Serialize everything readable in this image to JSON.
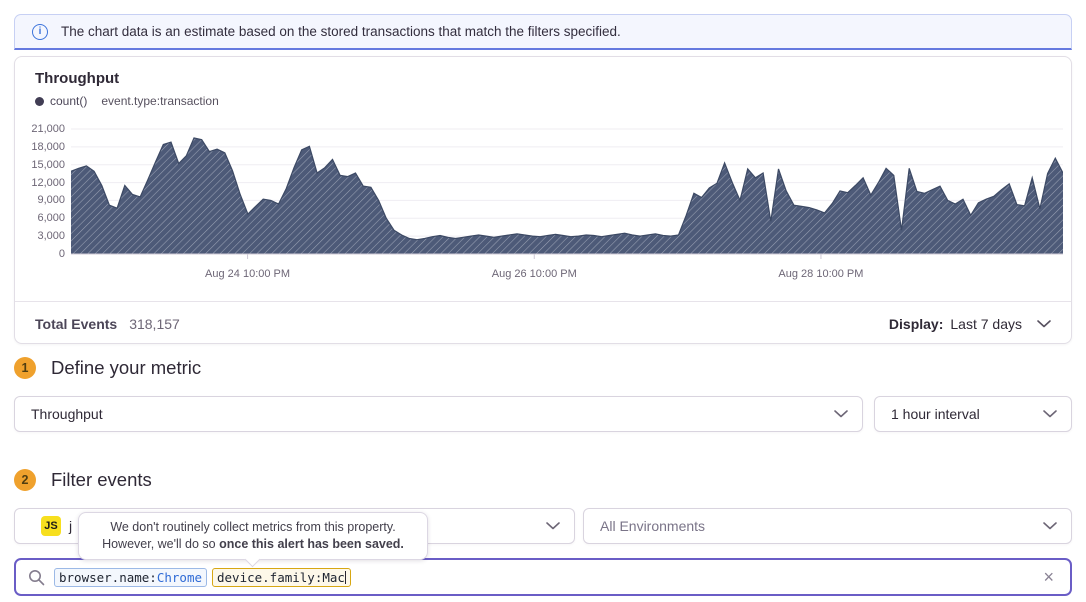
{
  "banner": {
    "text": "The chart data is an estimate based on the stored transactions that match the filters specified."
  },
  "chart": {
    "title": "Throughput",
    "legend_series": "count()",
    "legend_filter": "event.type:transaction",
    "footer": {
      "total_label": "Total Events",
      "total_value": "318,157",
      "display_label": "Display:",
      "display_value": "Last 7 days"
    }
  },
  "chart_data": {
    "type": "area",
    "title": "Throughput",
    "legend": [
      "count()"
    ],
    "filter": "event.type:transaction",
    "interval": "1 hour",
    "range": "Last 7 days",
    "total_events": 318157,
    "ylim": [
      0,
      21000
    ],
    "yticks": [
      0,
      3000,
      6000,
      9000,
      12000,
      15000,
      18000,
      21000
    ],
    "ytick_labels": [
      "0",
      "3,000",
      "6,000",
      "9,000",
      "12,000",
      "15,000",
      "18,000",
      "21,000"
    ],
    "xticks": [
      {
        "label": "Aug 24 10:00 PM",
        "pos": 0.178
      },
      {
        "label": "Aug 26 10:00 PM",
        "pos": 0.467
      },
      {
        "label": "Aug 28 10:00 PM",
        "pos": 0.756
      }
    ],
    "grid": "horizontal",
    "fill_color": "#4d5a78",
    "hatch_color": "#9aa2b4",
    "series": [
      {
        "name": "count()",
        "values": [
          13900,
          14400,
          14800,
          13900,
          11500,
          8200,
          7700,
          11500,
          10000,
          9600,
          12500,
          15500,
          18400,
          18800,
          15200,
          16500,
          19500,
          19200,
          17200,
          17600,
          17000,
          14000,
          10000,
          6700,
          8000,
          9200,
          9000,
          8400,
          11000,
          14500,
          17500,
          18100,
          13600,
          14500,
          15900,
          13200,
          13000,
          13600,
          11400,
          11200,
          9000,
          6000,
          4000,
          3200,
          2600,
          2400,
          2600,
          2900,
          3100,
          2800,
          2600,
          2800,
          3000,
          3200,
          3000,
          2800,
          3000,
          3200,
          3400,
          3200,
          3000,
          2900,
          3100,
          3300,
          3100,
          2900,
          3000,
          3200,
          3100,
          2900,
          3100,
          3300,
          3500,
          3200,
          3000,
          3200,
          3400,
          3100,
          3000,
          3200,
          6500,
          10200,
          9500,
          11100,
          11900,
          15300,
          12000,
          9000,
          14300,
          12800,
          13600,
          5500,
          14300,
          10600,
          8200,
          8000,
          7800,
          7400,
          6900,
          8500,
          10600,
          10300,
          11500,
          12800,
          9900,
          12000,
          14400,
          13200,
          4000,
          14400,
          10500,
          10200,
          10800,
          11400,
          9000,
          8400,
          9200,
          6500,
          8600,
          9200,
          9700,
          10800,
          11800,
          8300,
          8100,
          12800,
          7600,
          13500,
          16100,
          13600
        ]
      }
    ]
  },
  "sections": {
    "metric": {
      "step": "1",
      "title": "Define your metric",
      "metric_value": "Throughput",
      "interval_value": "1 hour interval"
    },
    "filter": {
      "step": "2",
      "title": "Filter events",
      "project": {
        "platform": "JS",
        "name": "j"
      },
      "environment_value": "All Environments"
    }
  },
  "tooltip": {
    "line1": "We don't routinely collect metrics from this property.",
    "line2_prefix": "However, we'll do so ",
    "line2_bold": "once this alert has been saved."
  },
  "search": {
    "tokens": [
      {
        "key": "browser.name:",
        "value": "Chrome"
      },
      {
        "key": "device.family:",
        "value": "Mac"
      }
    ],
    "clear_icon": "×"
  }
}
